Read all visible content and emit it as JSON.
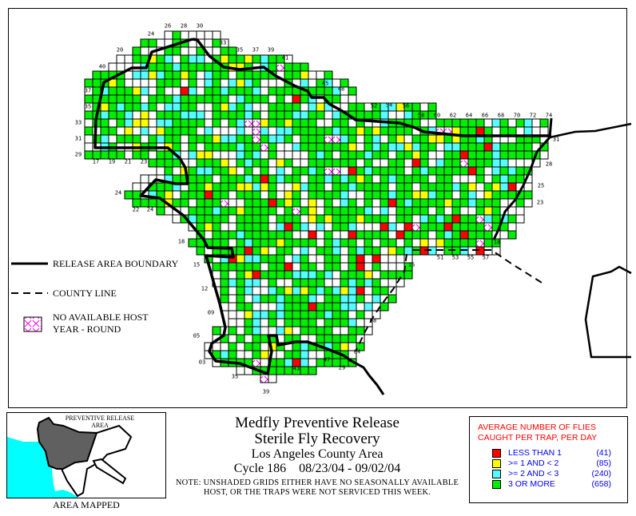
{
  "legend": {
    "release_boundary": "RELEASE AREA BOUNDARY",
    "county_line": "COUNTY LINE",
    "no_host_line1": "NO AVAILABLE HOST",
    "no_host_line2": "YEAR - ROUND"
  },
  "grid_labels": [
    "24",
    "26",
    "28",
    "30",
    "20",
    "33",
    "35",
    "37",
    "39",
    "41",
    "40",
    "45",
    "48",
    "52",
    "54",
    "56",
    "58",
    "60",
    "62",
    "64",
    "66",
    "68",
    "70",
    "72",
    "74",
    "37",
    "35",
    "33",
    "31",
    "29",
    "17",
    "19",
    "21",
    "23",
    "24",
    "22",
    "24",
    "18",
    "15",
    "12",
    "09",
    "05",
    "03",
    "35",
    "39",
    "43",
    "47",
    "29",
    "04",
    "08",
    "15",
    "18",
    "51",
    "53",
    "55",
    "57",
    "31",
    "28",
    "25",
    "23"
  ],
  "inset": {
    "label_line1": "PREVENTIVE RELEASE",
    "label_line2": "AREA",
    "caption": "AREA MAPPED"
  },
  "title": {
    "line1": "Medfly Preventive Release",
    "line2": "Sterile Fly Recovery",
    "line3": "Los Angeles County Area",
    "cycle": "Cycle 186",
    "dates": "08/23/04 - 09/02/04",
    "note_line1": "NOTE: UNSHADED GRIDS EITHER HAVE NO SEASONALLY AVAILABLE",
    "note_line2": "HOST, OR THE TRAPS WERE NOT SERVICED THIS WEEK."
  },
  "flies_legend": {
    "heading_line1": "AVERAGE NUMBER OF FLIES",
    "heading_line2": "CAUGHT PER TRAP, PER DAY",
    "items": [
      {
        "label": "LESS THAN 1",
        "count": "(41)",
        "color": "#ff0000"
      },
      {
        "label": ">= 1 AND < 2",
        "count": "(85)",
        "color": "#ffff00"
      },
      {
        "label": ">= 2 AND < 3",
        "count": "(240)",
        "color": "#55ffff"
      },
      {
        "label": "3 OR MORE",
        "count": "(658)",
        "color": "#00ee00"
      }
    ]
  },
  "colors": {
    "no_host_hatch": "#ff00ff",
    "ocean": "#00ffff",
    "release_area_fill": "#606060"
  }
}
